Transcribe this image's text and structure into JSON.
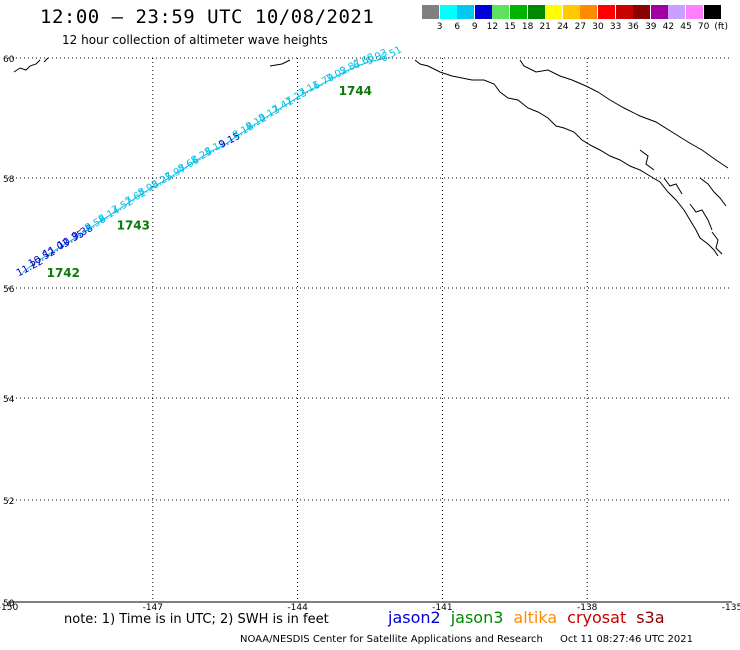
{
  "header": {
    "title": "12:00 – 23:59 UTC 10/08/2021",
    "subtitle": "12 hour collection of altimeter wave heights"
  },
  "colorbar": {
    "unit": "(ft)",
    "colors": [
      "#808080",
      "#00ffff",
      "#00c8f0",
      "#0000d8",
      "#60e060",
      "#00b400",
      "#008800",
      "#ffff00",
      "#ffc800",
      "#ff8c00",
      "#ff0000",
      "#c80000",
      "#8b0000",
      "#a000a0",
      "#c8a0ff",
      "#ff80ff",
      "#000000"
    ],
    "labels": [
      "3",
      "6",
      "9",
      "12",
      "15",
      "18",
      "21",
      "24",
      "27",
      "30",
      "33",
      "36",
      "39",
      "42",
      "45",
      "70"
    ]
  },
  "map": {
    "lon_ticks": [
      "-150",
      "-147",
      "-144",
      "-141",
      "-138",
      "-135"
    ],
    "lat_ticks": [
      "50",
      "52",
      "54",
      "56",
      "58",
      "60"
    ],
    "track_color": "#00bfe8",
    "wave_heights": [
      {
        "v": "11.22",
        "lon": -149.7,
        "lat": 56.28,
        "c": "#0000c0"
      },
      {
        "v": "10.52",
        "lon": -149.45,
        "lat": 56.45,
        "c": "#0000c0"
      },
      {
        "v": "11.03",
        "lon": -149.15,
        "lat": 56.62,
        "c": "#0000c0"
      },
      {
        "v": "10.35",
        "lon": -148.85,
        "lat": 56.78,
        "c": "#0000c0"
      },
      {
        "v": "9.38",
        "lon": -148.55,
        "lat": 56.94,
        "c": "#0000c0"
      },
      {
        "v": "8.58",
        "lon": -148.28,
        "lat": 57.1,
        "c": "#00bfe8"
      },
      {
        "v": "8.14",
        "lon": -148.0,
        "lat": 57.26,
        "c": "#00bfe8"
      },
      {
        "v": "7.52",
        "lon": -147.72,
        "lat": 57.42,
        "c": "#00bfe8"
      },
      {
        "v": "7.62",
        "lon": -147.45,
        "lat": 57.58,
        "c": "#00bfe8"
      },
      {
        "v": "8.93",
        "lon": -147.18,
        "lat": 57.74,
        "c": "#00bfe8"
      },
      {
        "v": "8.25",
        "lon": -146.9,
        "lat": 57.88,
        "c": "#00bfe8"
      },
      {
        "v": "7.97",
        "lon": -146.62,
        "lat": 58.02,
        "c": "#00bfe8"
      },
      {
        "v": "8.66",
        "lon": -146.35,
        "lat": 58.16,
        "c": "#00bfe8"
      },
      {
        "v": "8.25",
        "lon": -146.08,
        "lat": 58.3,
        "c": "#00bfe8"
      },
      {
        "v": "8.11",
        "lon": -145.8,
        "lat": 58.44,
        "c": "#00bfe8"
      },
      {
        "v": "9.15",
        "lon": -145.5,
        "lat": 58.56,
        "c": "#0000c0"
      },
      {
        "v": "8.18",
        "lon": -145.22,
        "lat": 58.72,
        "c": "#00bfe8"
      },
      {
        "v": "8.12",
        "lon": -144.95,
        "lat": 58.86,
        "c": "#00bfe8"
      },
      {
        "v": "8.13",
        "lon": -144.68,
        "lat": 59.0,
        "c": "#00bfe8"
      },
      {
        "v": "7.41",
        "lon": -144.4,
        "lat": 59.14,
        "c": "#00bfe8"
      },
      {
        "v": "7.23",
        "lon": -144.12,
        "lat": 59.28,
        "c": "#00bfe8"
      },
      {
        "v": "7.11",
        "lon": -143.85,
        "lat": 59.42,
        "c": "#00bfe8"
      },
      {
        "v": "6.79",
        "lon": -143.55,
        "lat": 59.54,
        "c": "#00bfe8"
      },
      {
        "v": "7.02",
        "lon": -143.28,
        "lat": 59.66,
        "c": "#00bfe8"
      },
      {
        "v": "5.87",
        "lon": -143.0,
        "lat": 59.78,
        "c": "#00bfe8"
      },
      {
        "v": "6.68",
        "lon": -142.72,
        "lat": 59.88,
        "c": "#00bfe8"
      },
      {
        "v": "5.93",
        "lon": -142.45,
        "lat": 59.95,
        "c": "#00bfe8"
      },
      {
        "v": "6.51",
        "lon": -142.15,
        "lat": 60.0,
        "c": "#00bfe8"
      }
    ],
    "times": [
      {
        "t": "1742",
        "lon": -149.2,
        "lat": 56.2
      },
      {
        "t": "1743",
        "lon": -147.75,
        "lat": 57.06
      },
      {
        "t": "1744",
        "lon": -143.15,
        "lat": 59.38
      }
    ]
  },
  "note": "note: 1) Time is in UTC; 2) SWH is in feet",
  "satellites": [
    {
      "name": "jason2",
      "color": "#0000d8"
    },
    {
      "name": "jason3",
      "color": "#008800"
    },
    {
      "name": "altika",
      "color": "#ff8c00"
    },
    {
      "name": "cryosat",
      "color": "#c80000"
    },
    {
      "name": "s3a",
      "color": "#8b0000"
    }
  ],
  "footer": {
    "credit": "NOAA/NESDIS Center for Satellite Applications and Research",
    "timestamp": "Oct 11 08:27:46 UTC 2021"
  }
}
